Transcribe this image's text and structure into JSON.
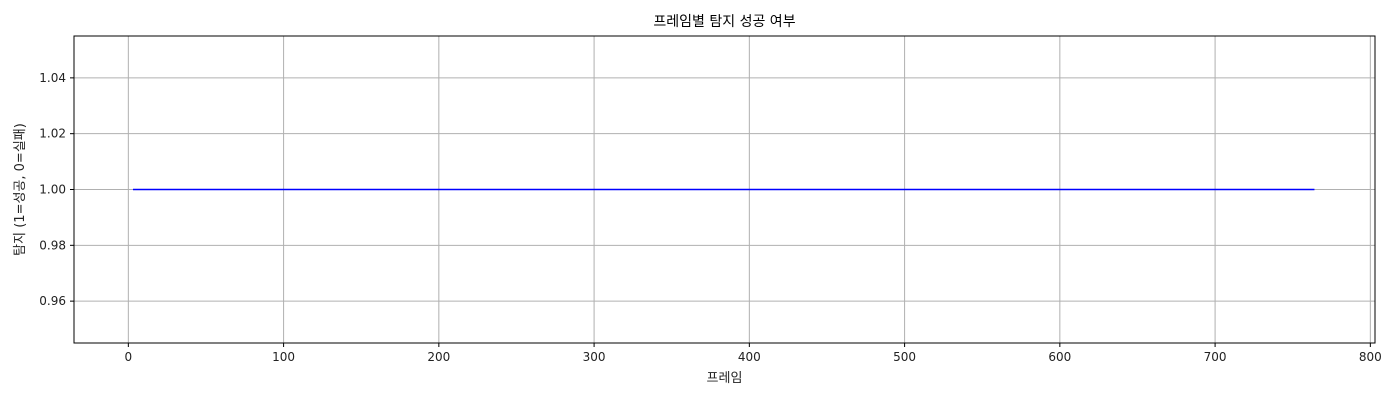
{
  "chart_data": {
    "type": "line",
    "title": "프레임별 탐지 성공 여부",
    "xlabel": "프레임",
    "ylabel": "탐지 (1=성공, 0=실패)",
    "xlim": [
      -35,
      803
    ],
    "ylim": [
      0.945,
      1.055
    ],
    "xticks": [
      0,
      100,
      200,
      300,
      400,
      500,
      600,
      700,
      800
    ],
    "yticks": [
      0.96,
      0.98,
      1.0,
      1.02,
      1.04
    ],
    "xtick_labels": [
      "0",
      "100",
      "200",
      "300",
      "400",
      "500",
      "600",
      "700",
      "800"
    ],
    "ytick_labels": [
      "0.96",
      "0.98",
      "1.00",
      "1.02",
      "1.04"
    ],
    "grid": true,
    "series": [
      {
        "color": "#0000ff",
        "x": [
          3,
          764
        ],
        "y": [
          1.0,
          1.0
        ]
      }
    ]
  }
}
